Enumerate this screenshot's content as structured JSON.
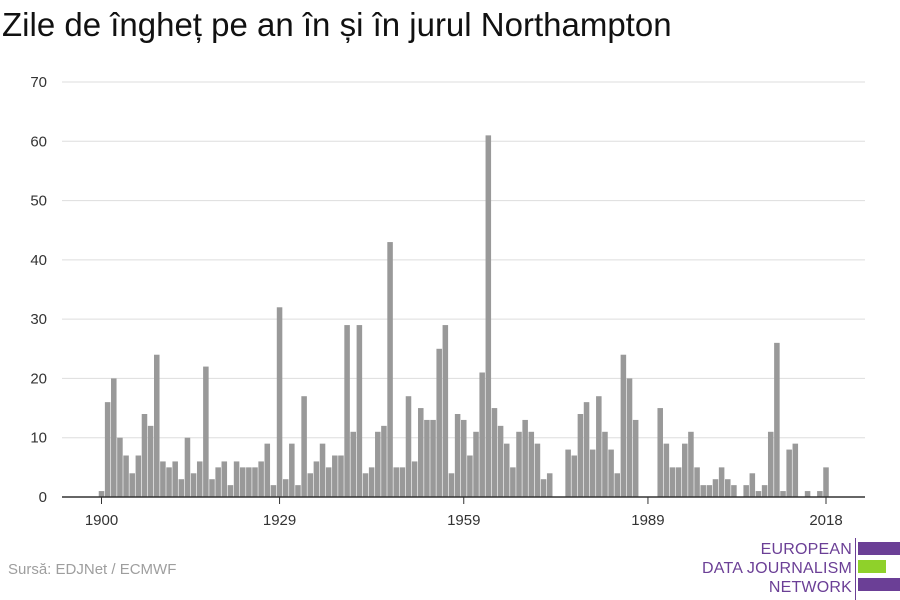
{
  "title": "Zile de îngheț pe an în și în jurul Northampton",
  "source": "Sursă: EDJNet / ECMWF",
  "logo": {
    "line1": "EUROPEAN",
    "line2": "DATA JOURNALISM",
    "line3": "NETWORK"
  },
  "colors": {
    "bar": "#999999",
    "grid": "#dddddd",
    "axis": "#333333",
    "brand_purple": "#6b3f96",
    "brand_green": "#8fd12a"
  },
  "chart_data": {
    "type": "bar",
    "title": "Zile de îngheț pe an în și în jurul Northampton",
    "xlabel": "",
    "ylabel": "",
    "ylim": [
      0,
      70
    ],
    "yticks": [
      0,
      10,
      20,
      30,
      40,
      50,
      60,
      70
    ],
    "xticks": [
      1900,
      1929,
      1959,
      1989,
      2018
    ],
    "grid": true,
    "x": [
      1900,
      1901,
      1902,
      1903,
      1904,
      1905,
      1906,
      1907,
      1908,
      1909,
      1910,
      1911,
      1912,
      1913,
      1914,
      1915,
      1916,
      1917,
      1918,
      1919,
      1920,
      1921,
      1922,
      1923,
      1924,
      1925,
      1926,
      1927,
      1928,
      1929,
      1930,
      1931,
      1932,
      1933,
      1934,
      1935,
      1936,
      1937,
      1938,
      1939,
      1940,
      1941,
      1942,
      1943,
      1944,
      1945,
      1946,
      1947,
      1948,
      1949,
      1950,
      1951,
      1952,
      1953,
      1954,
      1955,
      1956,
      1957,
      1958,
      1959,
      1960,
      1961,
      1962,
      1963,
      1964,
      1965,
      1966,
      1967,
      1968,
      1969,
      1970,
      1971,
      1972,
      1973,
      1974,
      1975,
      1976,
      1977,
      1978,
      1979,
      1980,
      1981,
      1982,
      1983,
      1984,
      1985,
      1986,
      1987,
      1988,
      1989,
      1990,
      1991,
      1992,
      1993,
      1994,
      1995,
      1996,
      1997,
      1998,
      1999,
      2000,
      2001,
      2002,
      2003,
      2004,
      2005,
      2006,
      2007,
      2008,
      2009,
      2010,
      2011,
      2012,
      2013,
      2014,
      2015,
      2016,
      2017,
      2018,
      2019,
      2020
    ],
    "values": [
      1,
      16,
      20,
      10,
      7,
      4,
      7,
      14,
      12,
      24,
      6,
      5,
      6,
      3,
      10,
      4,
      6,
      22,
      3,
      5,
      6,
      2,
      6,
      5,
      5,
      5,
      6,
      9,
      2,
      32,
      3,
      9,
      2,
      17,
      4,
      6,
      9,
      5,
      7,
      7,
      29,
      11,
      29,
      4,
      5,
      11,
      12,
      43,
      5,
      5,
      17,
      6,
      15,
      13,
      13,
      25,
      29,
      4,
      14,
      13,
      7,
      11,
      21,
      61,
      15,
      12,
      9,
      5,
      11,
      13,
      11,
      9,
      3,
      4,
      0,
      0,
      8,
      7,
      14,
      16,
      8,
      17,
      11,
      8,
      4,
      24,
      20,
      13,
      0,
      0,
      0,
      15,
      9,
      5,
      5,
      9,
      11,
      5,
      2,
      2,
      3,
      5,
      3,
      2,
      0,
      2,
      4,
      1,
      2,
      11,
      26,
      1,
      8,
      9,
      0,
      1,
      0,
      1,
      5,
      0,
      0
    ]
  }
}
